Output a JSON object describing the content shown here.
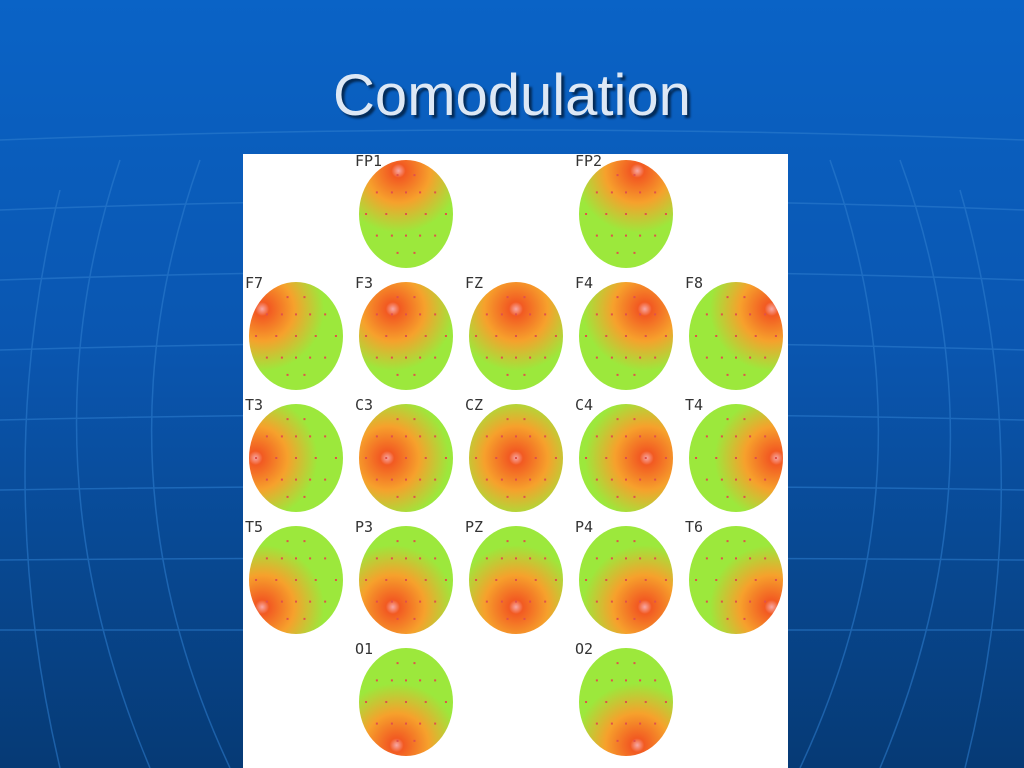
{
  "slide": {
    "title": "Comodulation"
  },
  "colors": {
    "background": "#0a56b0",
    "title_text": "#dde8f5",
    "map_low": "#9ce83c",
    "map_mid": "#f6a12c",
    "map_high": "#f25a22",
    "map_peak": "#f7a8a6",
    "electrode_dot": "#e0504c"
  },
  "figure": {
    "electrodes": [
      {
        "label": "FP1",
        "col": 1,
        "row": 0,
        "peak": [
          0.42,
          0.1
        ]
      },
      {
        "label": "FP2",
        "col": 3,
        "row": 0,
        "peak": [
          0.62,
          0.1
        ]
      },
      {
        "label": "F7",
        "col": 0,
        "row": 1,
        "peak": [
          0.14,
          0.25
        ]
      },
      {
        "label": "F3",
        "col": 1,
        "row": 1,
        "peak": [
          0.36,
          0.25
        ]
      },
      {
        "label": "FZ",
        "col": 2,
        "row": 1,
        "peak": [
          0.5,
          0.25
        ]
      },
      {
        "label": "F4",
        "col": 3,
        "row": 1,
        "peak": [
          0.7,
          0.25
        ]
      },
      {
        "label": "F8",
        "col": 4,
        "row": 1,
        "peak": [
          0.88,
          0.25
        ]
      },
      {
        "label": "T3",
        "col": 0,
        "row": 2,
        "peak": [
          0.07,
          0.5
        ]
      },
      {
        "label": "C3",
        "col": 1,
        "row": 2,
        "peak": [
          0.3,
          0.5
        ]
      },
      {
        "label": "CZ",
        "col": 2,
        "row": 2,
        "peak": [
          0.5,
          0.5
        ]
      },
      {
        "label": "C4",
        "col": 3,
        "row": 2,
        "peak": [
          0.72,
          0.5
        ]
      },
      {
        "label": "T4",
        "col": 4,
        "row": 2,
        "peak": [
          0.93,
          0.5
        ]
      },
      {
        "label": "T5",
        "col": 0,
        "row": 3,
        "peak": [
          0.14,
          0.75
        ]
      },
      {
        "label": "P3",
        "col": 1,
        "row": 3,
        "peak": [
          0.36,
          0.75
        ]
      },
      {
        "label": "PZ",
        "col": 2,
        "row": 3,
        "peak": [
          0.5,
          0.75
        ]
      },
      {
        "label": "P4",
        "col": 3,
        "row": 3,
        "peak": [
          0.7,
          0.75
        ]
      },
      {
        "label": "T6",
        "col": 4,
        "row": 3,
        "peak": [
          0.88,
          0.75
        ]
      },
      {
        "label": "O1",
        "col": 1,
        "row": 4,
        "peak": [
          0.4,
          0.9
        ]
      },
      {
        "label": "O2",
        "col": 3,
        "row": 4,
        "peak": [
          0.62,
          0.9
        ]
      }
    ]
  }
}
